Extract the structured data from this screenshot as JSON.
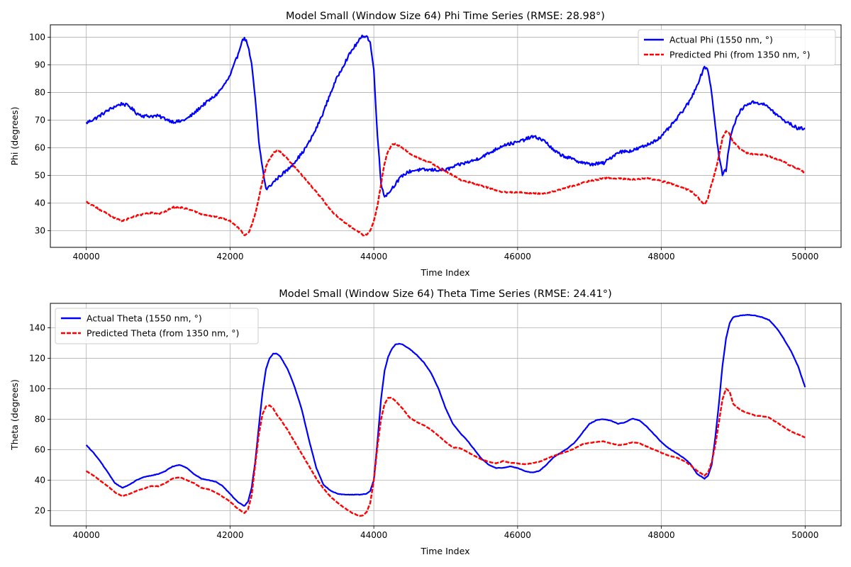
{
  "chart_data": [
    {
      "type": "line",
      "title": "Model Small (Window Size 64) Phi Time Series (RMSE: 28.98°)",
      "xlabel": "Time Index",
      "ylabel": "Phi (degrees)",
      "xlim": [
        39500,
        50500
      ],
      "ylim": [
        24,
        104.5
      ],
      "xticks": [
        40000,
        42000,
        44000,
        46000,
        48000,
        50000
      ],
      "yticks": [
        30,
        40,
        50,
        60,
        70,
        80,
        90,
        100
      ],
      "grid": true,
      "legend_position": "top-right",
      "series": [
        {
          "name": "Actual Phi (1550 nm, °)",
          "color": "#0000ff",
          "style": "solid",
          "noise": 0.6,
          "x": [
            40000,
            40150,
            40300,
            40400,
            40500,
            40600,
            40700,
            40800,
            40900,
            41000,
            41100,
            41200,
            41300,
            41400,
            41500,
            41600,
            41700,
            41800,
            41900,
            42000,
            42100,
            42150,
            42200,
            42250,
            42300,
            42350,
            42400,
            42450,
            42500,
            42550,
            42600,
            42700,
            42800,
            42900,
            43000,
            43100,
            43200,
            43300,
            43400,
            43500,
            43600,
            43700,
            43800,
            43850,
            43900,
            43950,
            44000,
            44050,
            44100,
            44150,
            44200,
            44300,
            44400,
            44500,
            44600,
            44700,
            44800,
            44900,
            45000,
            45200,
            45400,
            45600,
            45800,
            46000,
            46100,
            46200,
            46300,
            46400,
            46500,
            46600,
            46800,
            47000,
            47200,
            47300,
            47400,
            47600,
            47800,
            48000,
            48200,
            48300,
            48400,
            48500,
            48550,
            48600,
            48650,
            48700,
            48750,
            48800,
            48850,
            48900,
            48950,
            49000,
            49100,
            49200,
            49300,
            49400,
            49500,
            49600,
            49700,
            49800,
            49900,
            50000
          ],
          "values": [
            69,
            71,
            73.5,
            75,
            76,
            75,
            72.5,
            71.5,
            71.5,
            71.5,
            70.5,
            69.5,
            69.5,
            70.5,
            72.5,
            75,
            77,
            79,
            82,
            86,
            93,
            97.5,
            100,
            97,
            90,
            78,
            62,
            53,
            45,
            46,
            47.5,
            50,
            52,
            55,
            58,
            62,
            67,
            73,
            80,
            86,
            91,
            95.5,
            99,
            100.5,
            100.5,
            98,
            88,
            65,
            47,
            42.5,
            43.5,
            47,
            50,
            51.5,
            52,
            52,
            52,
            52,
            52,
            54,
            55.5,
            58,
            61,
            62,
            63,
            64,
            63.5,
            62,
            59,
            57.5,
            55.5,
            54,
            54.5,
            56.5,
            58.5,
            59,
            61,
            64,
            70,
            73.5,
            77,
            83,
            86,
            89.5,
            88,
            80,
            68,
            57,
            50.5,
            52,
            62,
            68,
            73.5,
            76,
            76.5,
            76,
            74.5,
            72,
            70,
            68.5,
            67,
            67
          ]
        },
        {
          "name": "Predicted Phi (from 1350 nm, °)",
          "color": "#ff0000",
          "style": "dashed",
          "noise": 0.25,
          "x": [
            40000,
            40100,
            40200,
            40300,
            40400,
            40500,
            40600,
            40700,
            40800,
            40900,
            41000,
            41100,
            41200,
            41300,
            41400,
            41500,
            41600,
            41700,
            41800,
            41900,
            42000,
            42100,
            42150,
            42200,
            42250,
            42300,
            42350,
            42400,
            42450,
            42500,
            42550,
            42600,
            42650,
            42700,
            42800,
            42900,
            43000,
            43100,
            43200,
            43300,
            43400,
            43500,
            43600,
            43700,
            43800,
            43850,
            43900,
            43950,
            44000,
            44050,
            44100,
            44150,
            44200,
            44250,
            44300,
            44400,
            44500,
            44600,
            44700,
            44800,
            44900,
            45000,
            45200,
            45400,
            45600,
            45800,
            46000,
            46200,
            46400,
            46600,
            46800,
            47000,
            47200,
            47400,
            47600,
            47800,
            48000,
            48200,
            48300,
            48400,
            48500,
            48550,
            48600,
            48650,
            48700,
            48750,
            48800,
            48850,
            48900,
            48950,
            49000,
            49100,
            49200,
            49300,
            49400,
            49500,
            49600,
            49700,
            49800,
            49900,
            50000
          ],
          "values": [
            40.5,
            39,
            37.5,
            36,
            34.5,
            33.5,
            34.5,
            35.5,
            36,
            36.5,
            36,
            37,
            38.5,
            38.5,
            38,
            37,
            36,
            35.5,
            35,
            34.5,
            33.5,
            31.5,
            30,
            28.5,
            29,
            32,
            36,
            42,
            48,
            53,
            56,
            58,
            59,
            58.5,
            56,
            53,
            50,
            47,
            44,
            41,
            37.5,
            35,
            33,
            31,
            29.5,
            28.5,
            28.5,
            30,
            33.5,
            39,
            47,
            54.5,
            59,
            61,
            61.5,
            60,
            58,
            56.5,
            55.5,
            54.5,
            53,
            51.5,
            48.5,
            47,
            45.5,
            44,
            44,
            43.5,
            43.5,
            45,
            46.5,
            48,
            49,
            49,
            48.5,
            49,
            48,
            46.5,
            45.5,
            44.5,
            42.5,
            40.5,
            39.5,
            42,
            47,
            51.5,
            57,
            63.5,
            66,
            65,
            62,
            59.5,
            58,
            57.5,
            57.5,
            57,
            56,
            55,
            53.5,
            52.5,
            51
          ]
        }
      ]
    },
    {
      "type": "line",
      "title": "Model Small (Window Size 64) Theta Time Series (RMSE: 24.41°)",
      "xlabel": "Time Index",
      "ylabel": "Theta (degrees)",
      "xlim": [
        39500,
        50500
      ],
      "ylim": [
        10,
        156
      ],
      "xticks": [
        40000,
        42000,
        44000,
        46000,
        48000,
        50000
      ],
      "yticks": [
        20,
        40,
        60,
        80,
        100,
        120,
        140
      ],
      "grid": true,
      "legend_position": "top-left",
      "series": [
        {
          "name": "Actual Theta (1550 nm, °)",
          "color": "#0000ff",
          "style": "solid",
          "noise": 0.15,
          "x": [
            40000,
            40100,
            40200,
            40300,
            40400,
            40500,
            40600,
            40700,
            40800,
            40900,
            41000,
            41100,
            41200,
            41300,
            41400,
            41500,
            41600,
            41700,
            41800,
            41900,
            42000,
            42100,
            42200,
            42250,
            42300,
            42350,
            42400,
            42450,
            42500,
            42550,
            42600,
            42650,
            42700,
            42800,
            42900,
            43000,
            43100,
            43200,
            43300,
            43400,
            43500,
            43600,
            43700,
            43800,
            43900,
            43950,
            44000,
            44050,
            44100,
            44150,
            44200,
            44250,
            44300,
            44350,
            44400,
            44500,
            44600,
            44700,
            44800,
            44900,
            45000,
            45100,
            45200,
            45300,
            45400,
            45500,
            45600,
            45700,
            45800,
            45900,
            46000,
            46100,
            46200,
            46300,
            46400,
            46500,
            46600,
            46700,
            46800,
            46900,
            47000,
            47100,
            47200,
            47300,
            47400,
            47500,
            47600,
            47700,
            47800,
            47900,
            48000,
            48100,
            48200,
            48300,
            48400,
            48500,
            48600,
            48650,
            48700,
            48750,
            48800,
            48850,
            48900,
            48950,
            49000,
            49100,
            49200,
            49300,
            49400,
            49500,
            49600,
            49700,
            49800,
            49900,
            50000
          ],
          "values": [
            63,
            58,
            52,
            45,
            38,
            35,
            37,
            40,
            42,
            43,
            44,
            46,
            49,
            50,
            48,
            44,
            41,
            40,
            39,
            36,
            31,
            26,
            23,
            26,
            35,
            52,
            75,
            97,
            113,
            120,
            123,
            123,
            121,
            113,
            101,
            86,
            66,
            48,
            37,
            33,
            31,
            30.5,
            30.5,
            30.5,
            31,
            33,
            40,
            65,
            93,
            112,
            121,
            126,
            129,
            129.5,
            129,
            126,
            122,
            117,
            110,
            100,
            87,
            77,
            71,
            66,
            60,
            54,
            50,
            48,
            48,
            49,
            48,
            46,
            45,
            46,
            50,
            55,
            58,
            61,
            65,
            71,
            77,
            79.5,
            80,
            79,
            77,
            78,
            80.5,
            79,
            75,
            70,
            65,
            61,
            58,
            55,
            51,
            44,
            41,
            43,
            50,
            68,
            90,
            115,
            133,
            143,
            147,
            148,
            148.5,
            148,
            147,
            145,
            140,
            133,
            125,
            115,
            101
          ]
        },
        {
          "name": "Predicted Theta (from 1350 nm, °)",
          "color": "#ff0000",
          "style": "dashed",
          "noise": 0.15,
          "x": [
            40000,
            40100,
            40200,
            40300,
            40400,
            40500,
            40600,
            40700,
            40800,
            40900,
            41000,
            41100,
            41200,
            41300,
            41400,
            41500,
            41600,
            41700,
            41800,
            41900,
            42000,
            42100,
            42200,
            42250,
            42300,
            42350,
            42400,
            42450,
            42500,
            42550,
            42600,
            42650,
            42700,
            42800,
            42900,
            43000,
            43100,
            43200,
            43300,
            43400,
            43500,
            43600,
            43700,
            43800,
            43850,
            43900,
            43950,
            44000,
            44050,
            44100,
            44150,
            44200,
            44250,
            44300,
            44400,
            44500,
            44600,
            44700,
            44800,
            44900,
            45000,
            45100,
            45200,
            45300,
            45400,
            45500,
            45600,
            45700,
            45800,
            45900,
            46000,
            46100,
            46200,
            46300,
            46400,
            46500,
            46600,
            46700,
            46800,
            46900,
            47000,
            47100,
            47200,
            47300,
            47400,
            47500,
            47600,
            47700,
            47800,
            47900,
            48000,
            48100,
            48200,
            48300,
            48400,
            48500,
            48600,
            48650,
            48700,
            48750,
            48800,
            48850,
            48900,
            48950,
            49000,
            49100,
            49200,
            49300,
            49400,
            49500,
            49600,
            49700,
            49800,
            49900,
            50000
          ],
          "values": [
            46,
            43,
            39.5,
            36,
            32,
            29.5,
            31,
            33,
            34.5,
            36,
            36,
            38,
            41,
            42,
            40,
            38,
            35,
            34,
            32,
            29,
            26,
            21.5,
            18.5,
            21,
            30,
            50,
            70,
            83,
            88.5,
            89,
            87,
            83,
            80,
            73,
            65,
            57,
            49,
            41,
            34.5,
            29,
            25,
            21.5,
            18.5,
            16.5,
            17,
            19,
            25,
            40,
            62,
            80,
            90,
            94,
            94,
            92,
            87,
            81,
            78,
            76,
            73,
            69,
            65,
            61.5,
            61,
            58.5,
            56,
            53.5,
            52,
            51,
            52.5,
            51.5,
            51,
            50.5,
            51,
            52,
            54,
            56,
            57.5,
            59,
            61,
            63.5,
            64.5,
            65,
            65.5,
            64,
            63,
            63.5,
            65,
            64,
            62,
            60,
            58,
            56,
            55,
            53,
            50,
            46,
            43,
            45,
            52,
            63,
            78,
            93,
            100,
            98,
            90,
            86,
            84,
            82.5,
            82,
            81,
            78,
            75,
            72,
            70,
            68
          ]
        }
      ]
    }
  ]
}
